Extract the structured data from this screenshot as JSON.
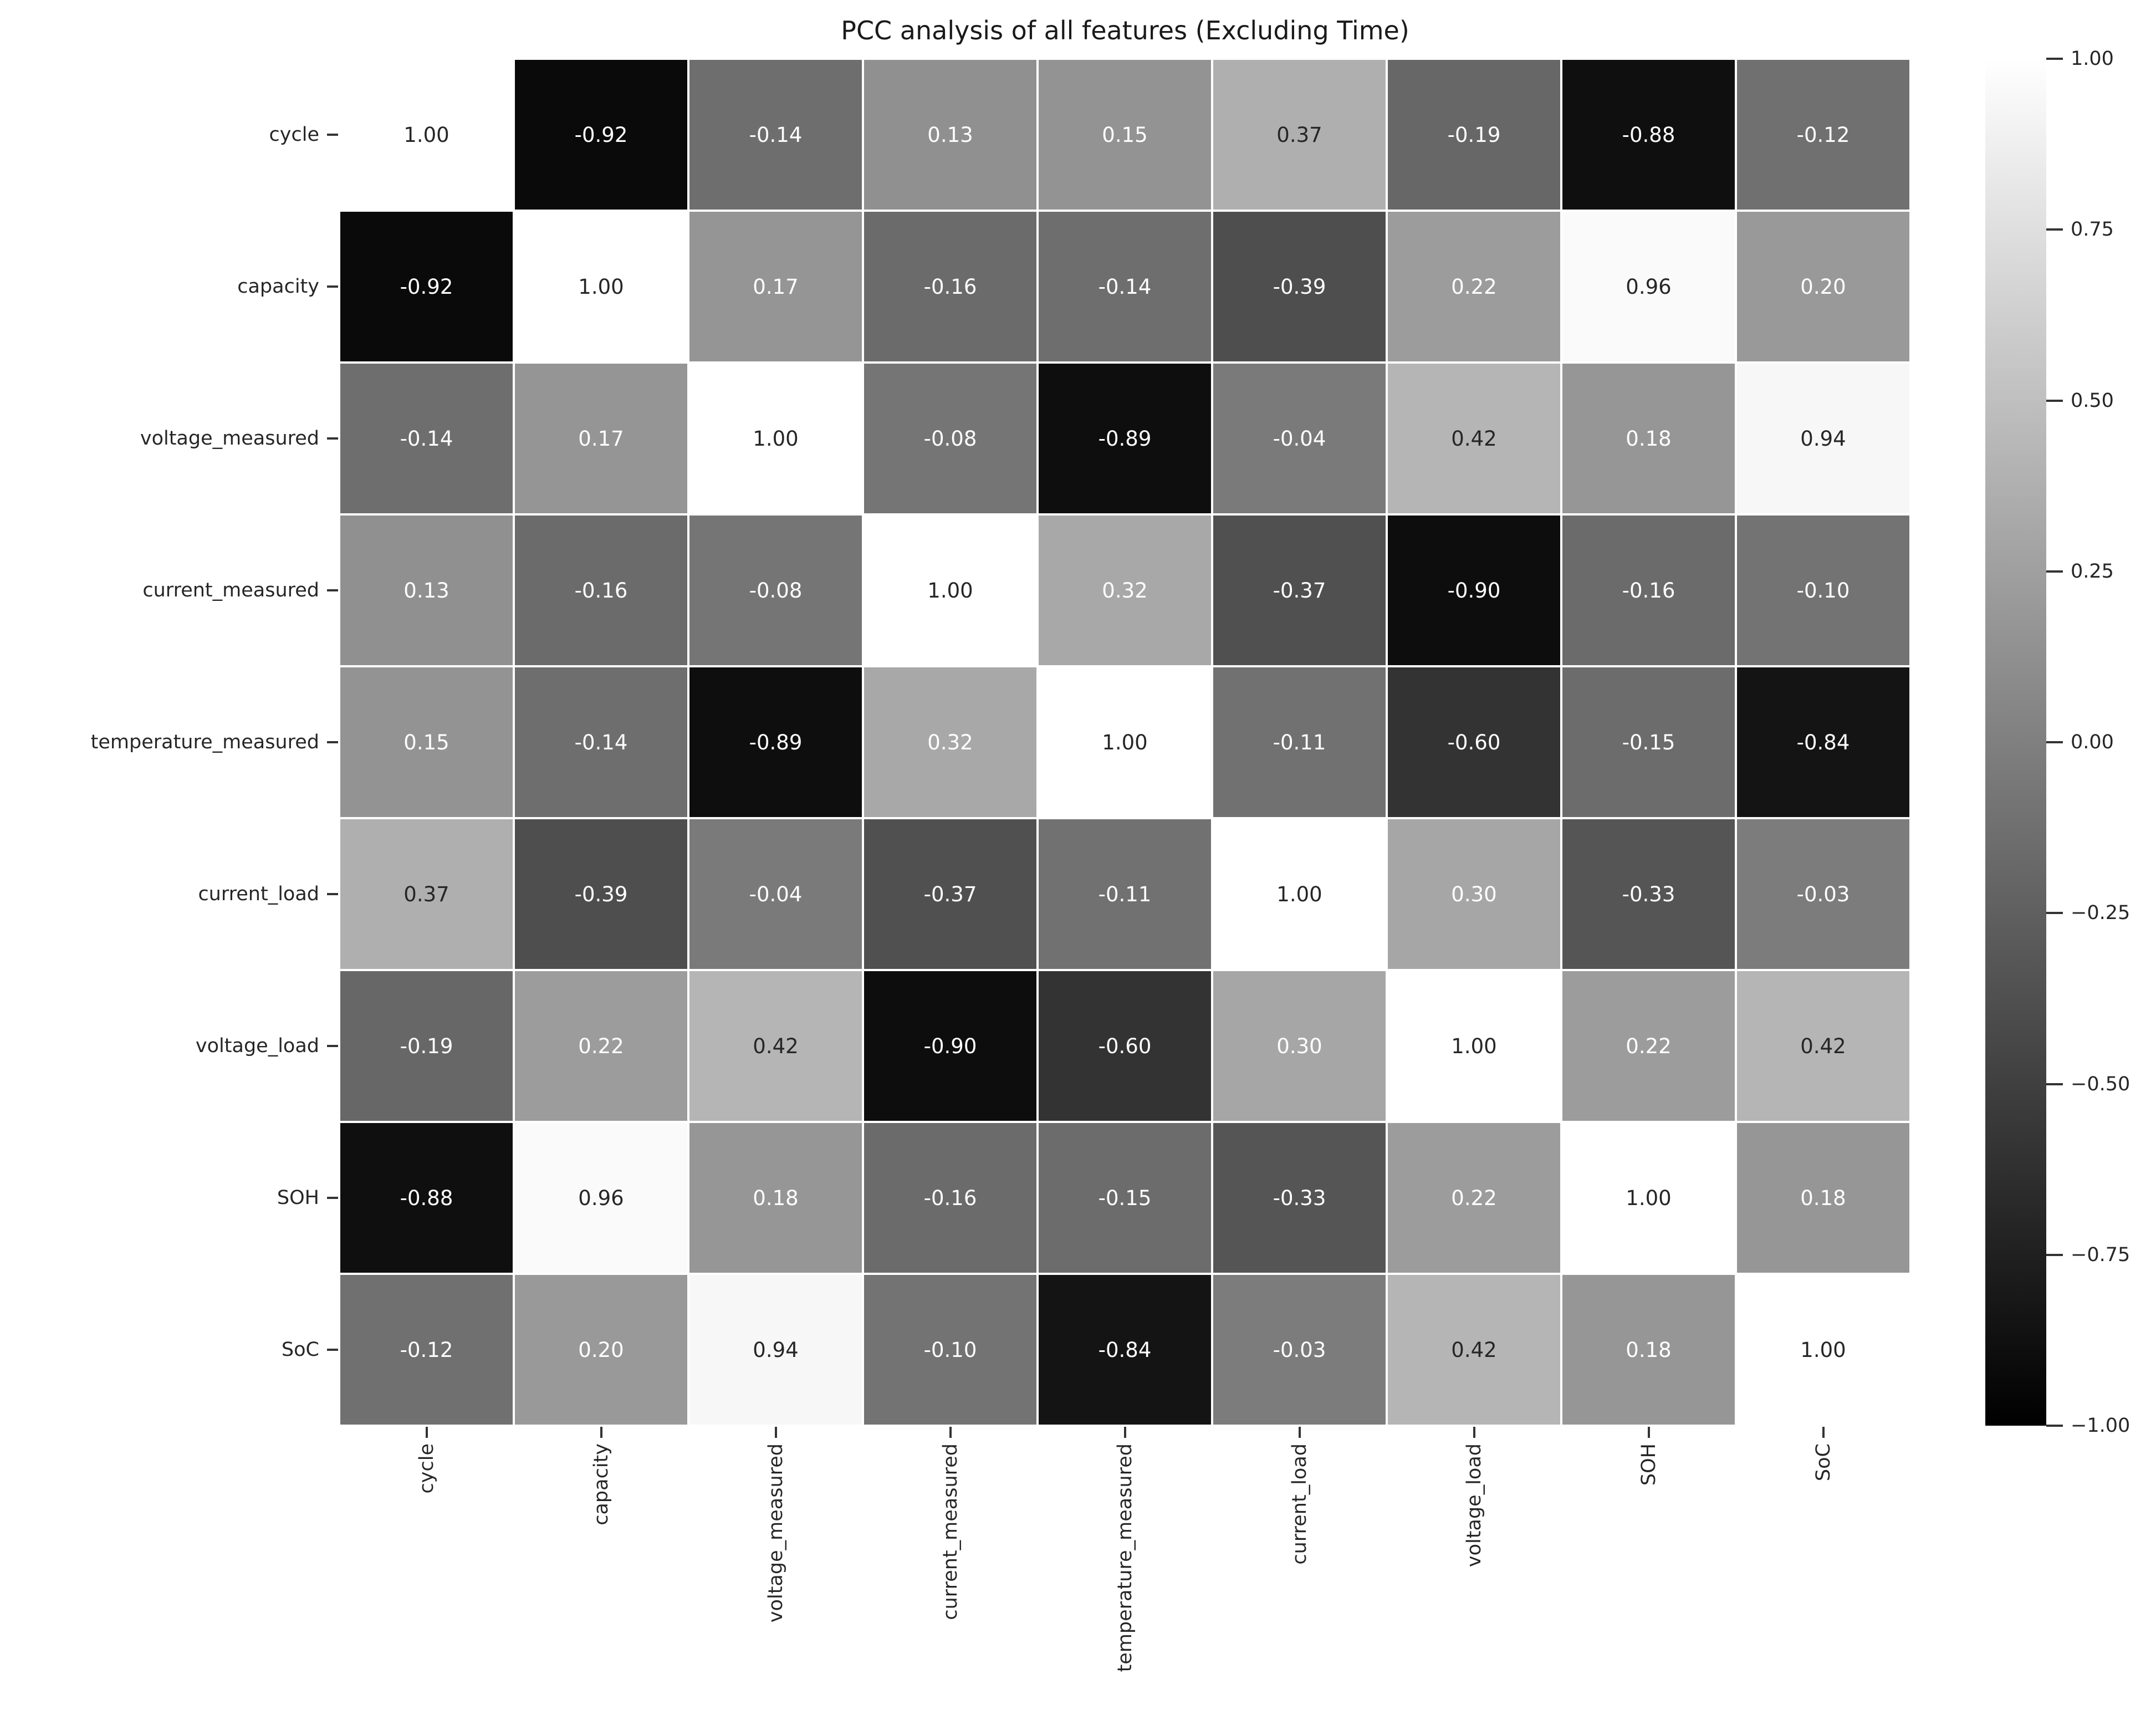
{
  "title": "PCC analysis of all features (Excluding Time)",
  "colors": {
    "cmap_low": "#000000",
    "cmap_high": "#ffffff",
    "annotation_dark": "#262626",
    "annotation_light": "#ffffff",
    "tick_label": "#262626"
  },
  "chart_data": {
    "type": "heatmap",
    "title": "PCC analysis of all features (Excluding Time)",
    "categories": [
      "cycle",
      "capacity",
      "voltage_measured",
      "current_measured",
      "temperature_measured",
      "current_load",
      "voltage_load",
      "SOH",
      "SoC"
    ],
    "matrix": [
      [
        1.0,
        -0.92,
        -0.14,
        0.13,
        0.15,
        0.37,
        -0.19,
        -0.88,
        -0.12
      ],
      [
        -0.92,
        1.0,
        0.17,
        -0.16,
        -0.14,
        -0.39,
        0.22,
        0.96,
        0.2
      ],
      [
        -0.14,
        0.17,
        1.0,
        -0.08,
        -0.89,
        -0.04,
        0.42,
        0.18,
        0.94
      ],
      [
        0.13,
        -0.16,
        -0.08,
        1.0,
        0.32,
        -0.37,
        -0.9,
        -0.16,
        -0.1
      ],
      [
        0.15,
        -0.14,
        -0.89,
        0.32,
        1.0,
        -0.11,
        -0.6,
        -0.15,
        -0.84
      ],
      [
        0.37,
        -0.39,
        -0.04,
        -0.37,
        -0.11,
        1.0,
        0.3,
        -0.33,
        -0.03
      ],
      [
        -0.19,
        0.22,
        0.42,
        -0.9,
        -0.6,
        0.3,
        1.0,
        0.22,
        0.42
      ],
      [
        -0.88,
        0.96,
        0.18,
        -0.16,
        -0.15,
        -0.33,
        0.22,
        1.0,
        0.18
      ],
      [
        -0.12,
        0.2,
        0.94,
        -0.1,
        -0.84,
        -0.03,
        0.42,
        0.18,
        1.0
      ]
    ],
    "vmin": -1.0,
    "vmax": 1.0,
    "annot_format": ".2f",
    "colormap": "gray (black at -1 to white at +1)",
    "grid": false,
    "legend_position": "colorbar-right",
    "colorbar_ticks": [
      "1.00",
      "0.75",
      "0.50",
      "0.25",
      "0.00",
      "−0.25",
      "−0.50",
      "−0.75",
      "−1.00"
    ],
    "colorbar_tick_values": [
      1.0,
      0.75,
      0.5,
      0.25,
      0.0,
      -0.25,
      -0.5,
      -0.75,
      -1.0
    ]
  }
}
